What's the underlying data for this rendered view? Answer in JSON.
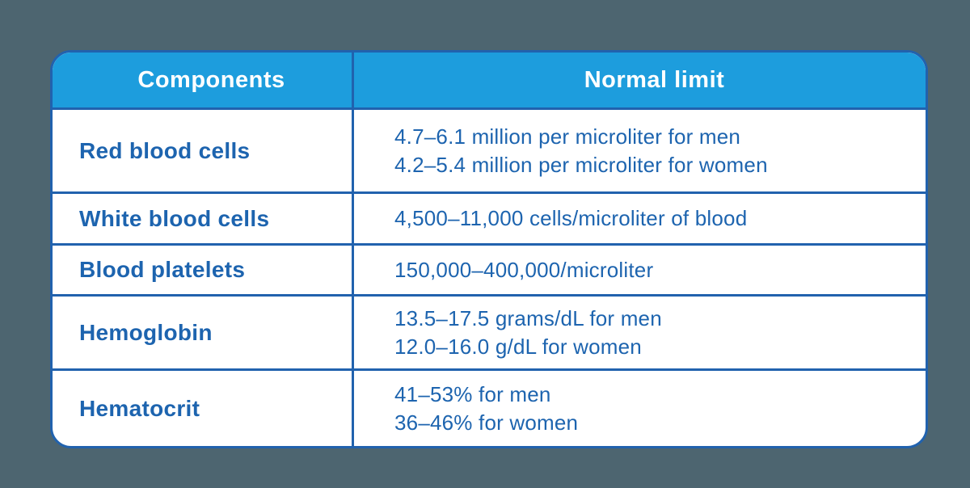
{
  "colors": {
    "page_background": "#4d6570",
    "header_background": "#1d9ddd",
    "border": "#2162ae",
    "body_text": "#1d64af",
    "header_text": "#ffffff",
    "cell_background": "#ffffff"
  },
  "table": {
    "headers": [
      "Components",
      "Normal limit"
    ],
    "rows": [
      {
        "component": "Red blood cells",
        "limits": {
          "0": "4.7–6.1 million per microliter for men",
          "1": "4.2–5.4 million per microliter for women"
        }
      },
      {
        "component": "White blood cells",
        "limits": {
          "0": "4,500–11,000 cells/microliter of blood"
        }
      },
      {
        "component": "Blood platelets",
        "limits": {
          "0": "150,000–400,000/microliter"
        }
      },
      {
        "component": "Hemoglobin",
        "limits": {
          "0": "13.5–17.5 grams/dL for men",
          "1": "12.0–16.0 g/dL for women"
        }
      },
      {
        "component": "Hematocrit",
        "limits": {
          "0": "41–53% for men",
          "1": "36–46% for women"
        }
      }
    ]
  },
  "chart_data": {
    "type": "table",
    "columns": [
      "Components",
      "Normal limit"
    ],
    "rows": [
      [
        "Red blood cells",
        "4.7–6.1 million per microliter for men; 4.2–5.4 million per microliter for women"
      ],
      [
        "White blood cells",
        "4,500–11,000 cells/microliter of blood"
      ],
      [
        "Blood platelets",
        "150,000–400,000/microliter"
      ],
      [
        "Hemoglobin",
        "13.5–17.5 grams/dL for men; 12.0–16.0 g/dL for women"
      ],
      [
        "Hematocrit",
        "41–53% for men; 36–46% for women"
      ]
    ],
    "layout_hints": {
      "header_fill": "#1d9ddd",
      "grid": true,
      "rounded_corners": true
    }
  }
}
